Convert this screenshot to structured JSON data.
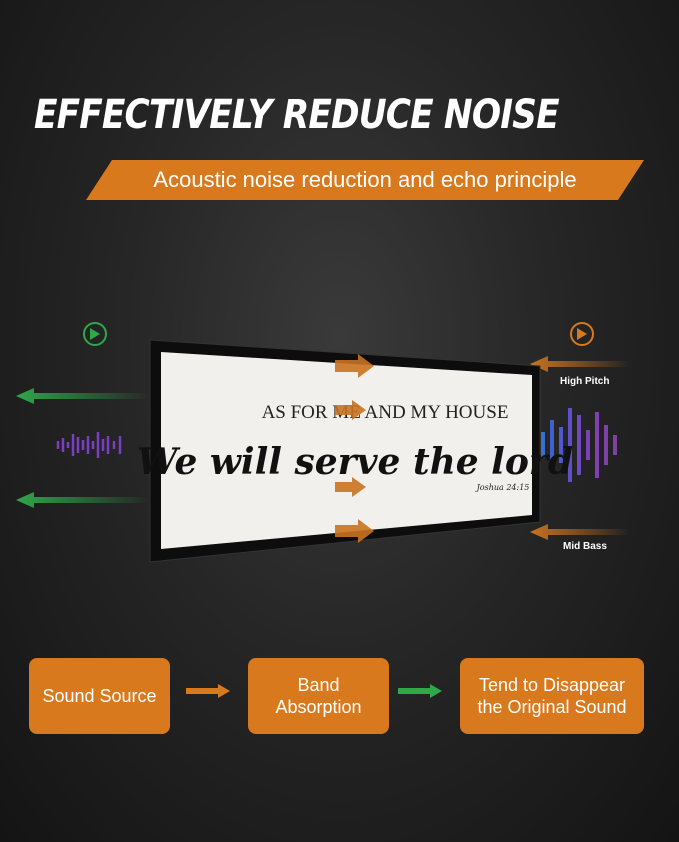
{
  "headline": "EFFECTIVELY REDUCE NOISE",
  "banner": "Acoustic noise reduction and echo principle",
  "sign": {
    "line1": "AS FOR ME AND MY HOUSE",
    "line2": "We will serve the lord",
    "verse": "Joshua 24:15"
  },
  "labels": {
    "high": "High Pitch",
    "mid": "Mid Bass"
  },
  "flow": [
    {
      "label": "Sound Source"
    },
    {
      "label": "Band Absorption"
    },
    {
      "label": "Tend to Disappear the Original Sound"
    }
  ],
  "colors": {
    "accent": "#d9791d",
    "green": "#2fa84a",
    "background": "#1e1e1e"
  }
}
